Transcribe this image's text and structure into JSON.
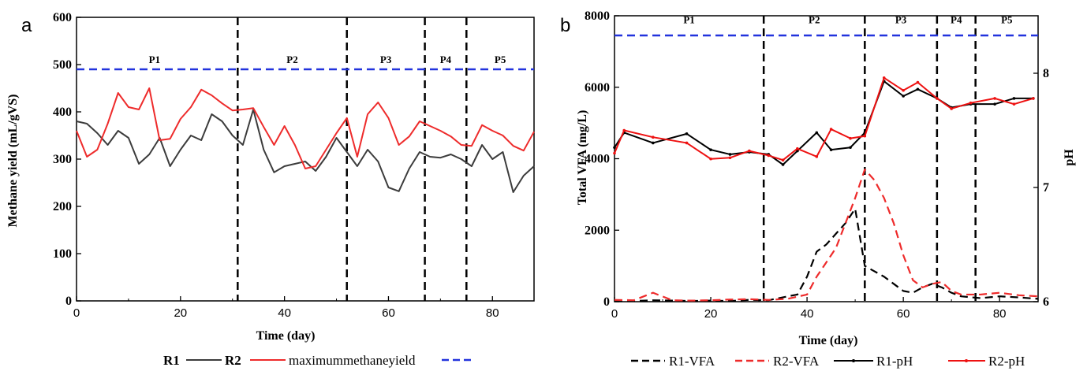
{
  "colors": {
    "r1": "#3c3c3c",
    "r2": "#ee2b2b",
    "max": "#2233dd",
    "divider": "#000000",
    "r1vfa": "#000000",
    "r2vfa": "#ee2b2b",
    "r1ph": "#000000",
    "r2ph": "#ee1111"
  },
  "chart_data": [
    {
      "panel_label": "a",
      "type": "line",
      "xlabel": "Time (day)",
      "ylabel": "Methane yield (mL/gVS)",
      "xlim": [
        0,
        88
      ],
      "ylim": [
        0,
        600
      ],
      "x_ticks": [
        0,
        20,
        40,
        60,
        80
      ],
      "y_ticks": [
        0,
        100,
        200,
        300,
        400,
        500,
        600
      ],
      "grid": false,
      "legend_position": "bottom",
      "phase_boundaries": [
        31,
        52,
        67,
        75
      ],
      "phases": [
        {
          "name": "P1",
          "x": 15,
          "y": 500
        },
        {
          "name": "P2",
          "x": 41.5,
          "y": 500
        },
        {
          "name": "P3",
          "x": 59.5,
          "y": 500
        },
        {
          "name": "P4",
          "x": 71,
          "y": 500
        },
        {
          "name": "P5",
          "x": 81.5,
          "y": 500
        }
      ],
      "hlines": [
        {
          "name": "maximummethaneyield",
          "y": 490
        }
      ],
      "series": [
        {
          "name": "R1",
          "x": [
            0,
            2,
            4,
            6,
            8,
            10,
            12,
            14,
            16,
            18,
            20,
            22,
            24,
            26,
            28,
            30,
            32,
            34,
            36,
            38,
            40,
            42,
            44,
            46,
            48,
            50,
            52,
            54,
            56,
            58,
            60,
            62,
            64,
            66,
            68,
            70,
            72,
            74,
            76,
            78,
            80,
            82,
            84,
            86,
            88
          ],
          "values": [
            380,
            375,
            355,
            330,
            360,
            345,
            290,
            310,
            345,
            285,
            320,
            350,
            340,
            395,
            380,
            350,
            330,
            405,
            320,
            272,
            285,
            290,
            295,
            275,
            305,
            345,
            315,
            285,
            320,
            295,
            240,
            232,
            280,
            315,
            305,
            303,
            310,
            300,
            285,
            330,
            300,
            315,
            230,
            265,
            285
          ]
        },
        {
          "name": "R2",
          "x": [
            0,
            2,
            4,
            6,
            8,
            10,
            12,
            14,
            16,
            18,
            20,
            22,
            24,
            26,
            28,
            30,
            32,
            34,
            36,
            38,
            40,
            42,
            44,
            46,
            48,
            50,
            52,
            54,
            56,
            58,
            60,
            62,
            64,
            66,
            68,
            70,
            72,
            74,
            76,
            78,
            80,
            82,
            84,
            86,
            88
          ],
          "values": [
            360,
            305,
            320,
            375,
            440,
            410,
            405,
            450,
            340,
            343,
            385,
            410,
            447,
            435,
            418,
            403,
            405,
            408,
            368,
            330,
            370,
            330,
            280,
            285,
            320,
            355,
            387,
            305,
            395,
            420,
            387,
            330,
            348,
            380,
            370,
            360,
            348,
            330,
            328,
            372,
            360,
            350,
            328,
            318,
            358
          ]
        }
      ],
      "legend": [
        "R1",
        "R2",
        "maximummethaneyield"
      ]
    },
    {
      "panel_label": "b",
      "type": "line",
      "xlabel": "Time (day)",
      "ylabel": "Total VFA (mg/L)",
      "y2label": "pH",
      "xlim": [
        0,
        88
      ],
      "ylim": [
        0,
        8000
      ],
      "y2lim": [
        6,
        8.4
      ],
      "x_ticks": [
        0,
        20,
        40,
        60,
        80
      ],
      "y_ticks": [
        0,
        2000,
        4000,
        6000,
        8000
      ],
      "y2_ticks": [
        6,
        7,
        8
      ],
      "grid": false,
      "legend_position": "bottom",
      "phase_boundaries": [
        31,
        52,
        67,
        75
      ],
      "phases": [
        {
          "name": "P1",
          "x": 15.5,
          "y": 7750
        },
        {
          "name": "P2",
          "x": 41.5,
          "y": 7750
        },
        {
          "name": "P3",
          "x": 59.5,
          "y": 7750
        },
        {
          "name": "P4",
          "x": 71,
          "y": 7750
        },
        {
          "name": "P5",
          "x": 81.5,
          "y": 7750
        }
      ],
      "hlines": [
        {
          "y": 7450
        }
      ],
      "series": [
        {
          "name": "R1-VFA",
          "axis": "left",
          "x": [
            0,
            4,
            8,
            12,
            16,
            20,
            24,
            28,
            32,
            36,
            38,
            40,
            42,
            44,
            46,
            48,
            50,
            52,
            54,
            56,
            58,
            60,
            62,
            64,
            66,
            68,
            70,
            72,
            76,
            80,
            84,
            88
          ],
          "values": [
            30,
            20,
            40,
            30,
            20,
            30,
            20,
            50,
            40,
            150,
            200,
            700,
            1400,
            1600,
            1900,
            2200,
            2600,
            1000,
            850,
            700,
            500,
            300,
            250,
            400,
            500,
            400,
            250,
            150,
            100,
            150,
            120,
            80
          ]
        },
        {
          "name": "R2-VFA",
          "axis": "left",
          "x": [
            0,
            4,
            8,
            12,
            16,
            20,
            24,
            28,
            32,
            36,
            40,
            42,
            44,
            46,
            48,
            50,
            52,
            54,
            56,
            58,
            60,
            62,
            64,
            66,
            68,
            70,
            72,
            76,
            80,
            84,
            88
          ],
          "values": [
            50,
            40,
            250,
            40,
            30,
            40,
            60,
            70,
            50,
            80,
            200,
            700,
            1100,
            1500,
            2200,
            2900,
            3700,
            3400,
            2900,
            2200,
            1300,
            600,
            400,
            500,
            550,
            300,
            200,
            200,
            250,
            180,
            150
          ]
        },
        {
          "name": "R1-pH",
          "axis": "right",
          "x": [
            0,
            2,
            8,
            15,
            20,
            24,
            28,
            32,
            35,
            38,
            42,
            45,
            49,
            52,
            56,
            60,
            63,
            67,
            70,
            74,
            79,
            83,
            87
          ],
          "values": [
            7.35,
            7.48,
            7.39,
            7.47,
            7.33,
            7.29,
            7.31,
            7.29,
            7.2,
            7.32,
            7.48,
            7.33,
            7.35,
            7.48,
            7.93,
            7.8,
            7.86,
            7.78,
            7.7,
            7.73,
            7.73,
            7.78,
            7.78
          ]
        },
        {
          "name": "R2-pH",
          "axis": "right",
          "x": [
            0,
            2,
            8,
            15,
            20,
            24,
            28,
            32,
            35,
            38,
            42,
            45,
            49,
            52,
            56,
            60,
            63,
            67,
            70,
            74,
            79,
            83,
            87
          ],
          "values": [
            7.3,
            7.5,
            7.44,
            7.39,
            7.25,
            7.26,
            7.32,
            7.28,
            7.24,
            7.34,
            7.27,
            7.51,
            7.43,
            7.45,
            7.96,
            7.85,
            7.92,
            7.78,
            7.69,
            7.74,
            7.78,
            7.73,
            7.78
          ]
        }
      ],
      "legend": [
        "R1-VFA",
        "R2-VFA",
        "R1-pH",
        "R2-pH"
      ]
    }
  ]
}
